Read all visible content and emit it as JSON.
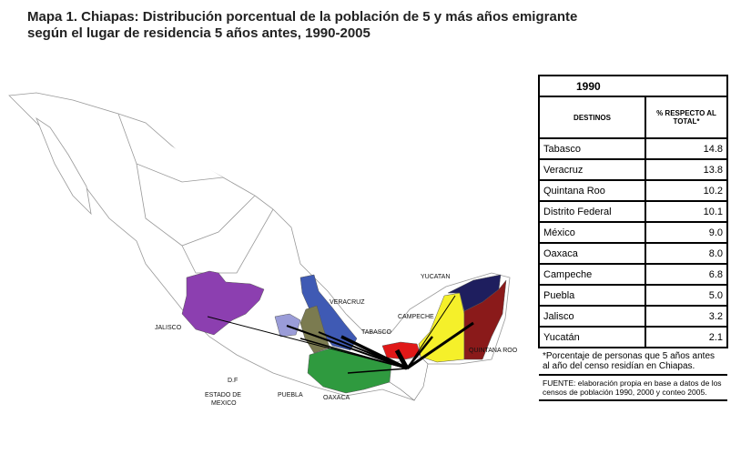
{
  "header": {
    "title_line1": "Mapa 1. Chiapas: Distribución porcentual de la población de 5 y más años emigrante",
    "title_line2": "según el lugar de residencia 5 años antes, 1990-2005"
  },
  "map": {
    "labels": [
      "JALISCO",
      "VERACRUZ",
      "YUCATAN",
      "CAMPECHE",
      "TABASCO",
      "QUINTANA ROO",
      "D.F",
      "ESTADO DE",
      "MEXICO",
      "PUEBLA",
      "OAXACA"
    ]
  },
  "table": {
    "year": "1990",
    "columns": [
      "DESTINOS",
      "% RESPECTO AL TOTAL*"
    ],
    "rows": [
      [
        "Tabasco",
        "14.8"
      ],
      [
        "Veracruz",
        "13.8"
      ],
      [
        "Quintana Roo",
        "10.2"
      ],
      [
        "Distrito Federal",
        "10.1"
      ],
      [
        "México",
        "9.0"
      ],
      [
        "Oaxaca",
        "8.0"
      ],
      [
        "Campeche",
        "6.8"
      ],
      [
        "Puebla",
        "5.0"
      ],
      [
        "Jalisco",
        "3.2"
      ],
      [
        "Yucatán",
        "2.1"
      ]
    ],
    "note": "*Porcentaje de personas que 5 años antes al año del censo residían en Chiapas.",
    "source": "FUENTE: elaboración propia en base a datos de los censos de población 1990, 2000 y conteo 2005."
  }
}
